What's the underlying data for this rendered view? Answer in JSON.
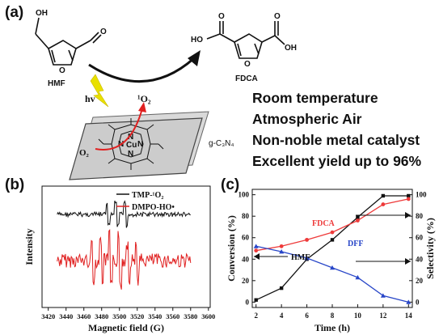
{
  "panel_a": {
    "label": "(a)",
    "reactant": "HMF",
    "product": "FDCA",
    "atoms": {
      "oh": "OH",
      "o": "O",
      "ho": "HO",
      "n": "N",
      "cu": "Cu"
    },
    "light": "hv",
    "singlet_oxygen": "¹O₂",
    "oxygen": "O₂",
    "support": "g-C₃N₄",
    "conditions": [
      "Room temperature",
      "Atmospheric Air",
      "Non-noble metal catalyst",
      "Excellent yield up to 96%"
    ]
  },
  "panel_b": {
    "label": "(b)",
    "xlabel": "Magnetic field (G)",
    "ylabel": "Intensity",
    "xticks": [
      3420,
      3440,
      3460,
      3480,
      3500,
      3520,
      3540,
      3560,
      3580,
      3600
    ],
    "legend": [
      "TMP-¹O₂",
      "DMPO-HO•"
    ],
    "colors": {
      "tmp": "#111111",
      "dmpo": "#e02020"
    }
  },
  "panel_c": {
    "label": "(c)",
    "chart_data": {
      "type": "line",
      "xlabel": "Time (h)",
      "ylabel_left": "Conversion (%)",
      "ylabel_right": "Selectivity (%)",
      "xlim": [
        1.7,
        14.3
      ],
      "ylim": [
        -5,
        105
      ],
      "x": [
        2,
        4,
        6,
        8,
        10,
        12,
        14
      ],
      "xticks": [
        2,
        4,
        6,
        8,
        10,
        12,
        14
      ],
      "yticks": [
        0,
        20,
        40,
        60,
        80,
        100
      ],
      "series": [
        {
          "name": "HMF",
          "axis": "left",
          "color": "#111111",
          "marker": "square",
          "values": [
            2,
            13,
            40,
            58,
            79,
            99,
            99
          ]
        },
        {
          "name": "FDCA",
          "axis": "right",
          "color": "#ee3a3a",
          "marker": "circle",
          "values": [
            48,
            52,
            58,
            65,
            76,
            91,
            96
          ]
        },
        {
          "name": "DFF",
          "axis": "right",
          "color": "#2846c8",
          "marker": "triangle",
          "values": [
            52,
            47,
            41,
            32,
            23,
            6,
            0
          ]
        }
      ]
    }
  }
}
